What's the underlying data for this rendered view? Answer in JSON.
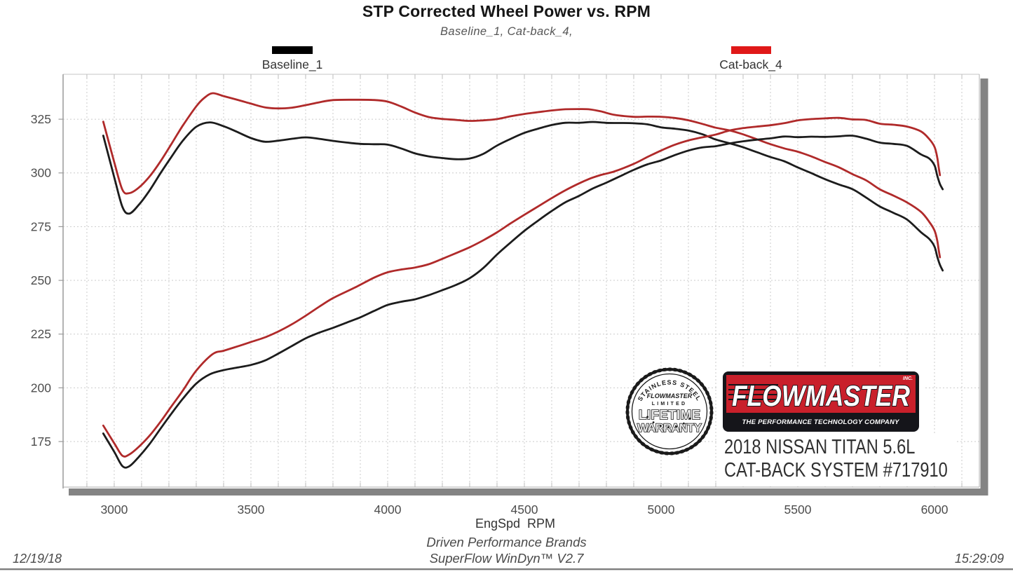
{
  "page": {
    "date": "12/19/18",
    "time": "15:29:09",
    "footer_line1": "Driven Performance Brands",
    "footer_line2": "SuperFlow WinDyn™ V2.7"
  },
  "branding": {
    "badge": {
      "arc_top": "STAINLESS STEEL",
      "brand": "FLOWMASTER",
      "limited": "LIMITED",
      "word1": "LIFETIME",
      "word2": "WARRANTY",
      "arc_bottom": "• • • • • • •"
    },
    "logo": {
      "brand": "FLOWMASTER",
      "inc": "INC.",
      "tagline": "THE PERFORMANCE TECHNOLOGY COMPANY"
    },
    "caption_line1": "2018 NISSAN TITAN 5.6L",
    "caption_line2": "CAT-BACK SYSTEM #717910"
  },
  "chart_data": {
    "type": "line",
    "title": "STP Corrected Wheel Power vs. RPM",
    "subtitle": "Baseline_1, Cat-back_4,",
    "xlabel": "EngSpd  RPM",
    "legend": [
      {
        "label": "Baseline_1",
        "color": "#000000"
      },
      {
        "label": "Cat-back_4",
        "color": "#e01818"
      }
    ],
    "x_ticks": [
      3000,
      3500,
      4000,
      4500,
      5000,
      5500,
      6000
    ],
    "y_ticks": [
      175,
      200,
      225,
      250,
      275,
      300,
      325
    ],
    "x_range": [
      2813,
      6164
    ],
    "y_range": [
      153.8,
      345.9
    ],
    "grid_x_step": 100,
    "grid_y_step": 25,
    "grid": true,
    "series": [
      {
        "name": "Baseline_1",
        "curve": "upper",
        "color": "#1c1c1c",
        "points": [
          [
            2960,
            317.5
          ],
          [
            3000,
            298
          ],
          [
            3030,
            284.5
          ],
          [
            3055,
            281
          ],
          [
            3090,
            285
          ],
          [
            3130,
            292
          ],
          [
            3170,
            300
          ],
          [
            3210,
            307.5
          ],
          [
            3250,
            315
          ],
          [
            3300,
            321.5
          ],
          [
            3350,
            323.5
          ],
          [
            3400,
            322
          ],
          [
            3450,
            319.5
          ],
          [
            3500,
            316.5
          ],
          [
            3550,
            314.5
          ],
          [
            3600,
            315
          ],
          [
            3650,
            316
          ],
          [
            3700,
            316.5
          ],
          [
            3750,
            315.5
          ],
          [
            3800,
            314.5
          ],
          [
            3850,
            314
          ],
          [
            3900,
            313.5
          ],
          [
            3950,
            313.2
          ],
          [
            4000,
            313
          ],
          [
            4050,
            311.5
          ],
          [
            4100,
            309.5
          ],
          [
            4150,
            308
          ],
          [
            4200,
            307
          ],
          [
            4250,
            306.5
          ],
          [
            4300,
            307
          ],
          [
            4350,
            309
          ],
          [
            4400,
            312.5
          ],
          [
            4450,
            315.5
          ],
          [
            4500,
            318.5
          ],
          [
            4550,
            320.5
          ],
          [
            4600,
            322
          ],
          [
            4650,
            323
          ],
          [
            4700,
            323.3
          ],
          [
            4750,
            324
          ],
          [
            4800,
            323.5
          ],
          [
            4850,
            323.3
          ],
          [
            4900,
            323.3
          ],
          [
            4950,
            323
          ],
          [
            5000,
            321.5
          ],
          [
            5050,
            320.5
          ],
          [
            5100,
            319.5
          ],
          [
            5150,
            318
          ],
          [
            5200,
            315.5
          ],
          [
            5250,
            313.5
          ],
          [
            5300,
            311.5
          ],
          [
            5350,
            309.5
          ],
          [
            5400,
            307.5
          ],
          [
            5450,
            305.5
          ],
          [
            5500,
            302.5
          ],
          [
            5550,
            300
          ],
          [
            5600,
            297.5
          ],
          [
            5650,
            295
          ],
          [
            5700,
            292.5
          ],
          [
            5750,
            288.5
          ],
          [
            5800,
            284.5
          ],
          [
            5850,
            281.5
          ],
          [
            5900,
            278
          ],
          [
            5950,
            272
          ],
          [
            5980,
            269.5
          ],
          [
            6000,
            265.5
          ],
          [
            6010,
            261
          ],
          [
            6020,
            257.5
          ],
          [
            6030,
            255
          ]
        ]
      },
      {
        "name": "Cat-back_4",
        "curve": "upper",
        "color": "#b02a2a",
        "points": [
          [
            2960,
            324
          ],
          [
            3000,
            305
          ],
          [
            3030,
            292.5
          ],
          [
            3055,
            290.5
          ],
          [
            3090,
            293
          ],
          [
            3130,
            298.5
          ],
          [
            3170,
            305.5
          ],
          [
            3210,
            313.5
          ],
          [
            3250,
            322
          ],
          [
            3300,
            331
          ],
          [
            3330,
            334.8
          ],
          [
            3360,
            336.8
          ],
          [
            3400,
            336
          ],
          [
            3450,
            334.5
          ],
          [
            3500,
            332.5
          ],
          [
            3550,
            330.5
          ],
          [
            3600,
            330
          ],
          [
            3650,
            330.5
          ],
          [
            3700,
            331.5
          ],
          [
            3750,
            332.5
          ],
          [
            3800,
            333.5
          ],
          [
            3880,
            334.5
          ],
          [
            3950,
            333.8
          ],
          [
            4000,
            333
          ],
          [
            4050,
            331
          ],
          [
            4100,
            328.5
          ],
          [
            4150,
            326.3
          ],
          [
            4200,
            325.2
          ],
          [
            4250,
            324.8
          ],
          [
            4300,
            324.5
          ],
          [
            4350,
            324.6
          ],
          [
            4400,
            324.8
          ],
          [
            4450,
            326
          ],
          [
            4500,
            327.3
          ],
          [
            4550,
            328.2
          ],
          [
            4600,
            328.8
          ],
          [
            4650,
            329.3
          ],
          [
            4700,
            329.7
          ],
          [
            4740,
            330
          ],
          [
            4780,
            328.8
          ],
          [
            4830,
            326.8
          ],
          [
            4900,
            326.3
          ],
          [
            4950,
            326.6
          ],
          [
            5000,
            326.4
          ],
          [
            5050,
            325.5
          ],
          [
            5100,
            324.3
          ],
          [
            5150,
            322.8
          ],
          [
            5200,
            321
          ],
          [
            5250,
            319.5
          ],
          [
            5300,
            317.5
          ],
          [
            5350,
            315.5
          ],
          [
            5400,
            313.5
          ],
          [
            5450,
            311.5
          ],
          [
            5500,
            309.8
          ],
          [
            5550,
            307.8
          ],
          [
            5600,
            305.5
          ],
          [
            5650,
            303
          ],
          [
            5700,
            299.5
          ],
          [
            5750,
            296.5
          ],
          [
            5800,
            292.5
          ],
          [
            5850,
            289.5
          ],
          [
            5900,
            286
          ],
          [
            5950,
            281.5
          ],
          [
            5980,
            277.5
          ],
          [
            6000,
            273
          ],
          [
            6010,
            268.5
          ],
          [
            6015,
            264.5
          ],
          [
            6020,
            261
          ]
        ]
      },
      {
        "name": "Baseline_1",
        "curve": "lower",
        "color": "#1c1c1c",
        "points": [
          [
            2960,
            178.9
          ],
          [
            3000,
            170.2
          ],
          [
            3030,
            163.9
          ],
          [
            3055,
            163.4
          ],
          [
            3090,
            167.7
          ],
          [
            3130,
            174.0
          ],
          [
            3170,
            181.1
          ],
          [
            3210,
            188.0
          ],
          [
            3250,
            194.9
          ],
          [
            3300,
            202.0
          ],
          [
            3350,
            206.3
          ],
          [
            3400,
            208.5
          ],
          [
            3450,
            209.9
          ],
          [
            3500,
            210.9
          ],
          [
            3550,
            212.6
          ],
          [
            3600,
            215.9
          ],
          [
            3650,
            219.6
          ],
          [
            3700,
            223.0
          ],
          [
            3750,
            225.3
          ],
          [
            3800,
            227.5
          ],
          [
            3850,
            230.2
          ],
          [
            3900,
            232.8
          ],
          [
            3950,
            235.6
          ],
          [
            4000,
            238.4
          ],
          [
            4050,
            240.2
          ],
          [
            4100,
            241.6
          ],
          [
            4150,
            243.4
          ],
          [
            4200,
            245.5
          ],
          [
            4250,
            248.0
          ],
          [
            4300,
            251.3
          ],
          [
            4350,
            255.9
          ],
          [
            4400,
            261.8
          ],
          [
            4450,
            267.3
          ],
          [
            4500,
            272.9
          ],
          [
            4550,
            277.7
          ],
          [
            4600,
            282.0
          ],
          [
            4650,
            286.0
          ],
          [
            4700,
            289.3
          ],
          [
            4750,
            293.0
          ],
          [
            4800,
            295.7
          ],
          [
            4850,
            298.5
          ],
          [
            4900,
            301.6
          ],
          [
            4950,
            304.4
          ],
          [
            5000,
            306.1
          ],
          [
            5050,
            308.2
          ],
          [
            5100,
            310.2
          ],
          [
            5150,
            311.8
          ],
          [
            5200,
            312.4
          ],
          [
            5250,
            313.4
          ],
          [
            5300,
            314.3
          ],
          [
            5350,
            315.3
          ],
          [
            5400,
            316.2
          ],
          [
            5450,
            317.0
          ],
          [
            5500,
            316.6
          ],
          [
            5550,
            317.0
          ],
          [
            5600,
            317.2
          ],
          [
            5650,
            317.4
          ],
          [
            5700,
            317.4
          ],
          [
            5750,
            315.9
          ],
          [
            5800,
            314.2
          ],
          [
            5850,
            313.6
          ],
          [
            5900,
            312.3
          ],
          [
            5950,
            308.2
          ],
          [
            5980,
            306.9
          ],
          [
            6000,
            303.3
          ],
          [
            6010,
            298.7
          ],
          [
            6020,
            295.1
          ],
          [
            6030,
            292.8
          ]
        ]
      },
      {
        "name": "Cat-back_4",
        "curve": "lower",
        "color": "#b02a2a",
        "points": [
          [
            2960,
            182.6
          ],
          [
            3000,
            174.2
          ],
          [
            3030,
            168.7
          ],
          [
            3055,
            168.9
          ],
          [
            3090,
            172.4
          ],
          [
            3130,
            177.9
          ],
          [
            3170,
            184.3
          ],
          [
            3210,
            191.4
          ],
          [
            3250,
            198.7
          ],
          [
            3300,
            208.0
          ],
          [
            3360,
            215.4
          ],
          [
            3400,
            217.5
          ],
          [
            3450,
            219.7
          ],
          [
            3500,
            221.6
          ],
          [
            3550,
            223.4
          ],
          [
            3600,
            226.2
          ],
          [
            3650,
            229.7
          ],
          [
            3700,
            233.5
          ],
          [
            3750,
            237.4
          ],
          [
            3800,
            241.3
          ],
          [
            3880,
            247.1
          ],
          [
            3950,
            251.1
          ],
          [
            4000,
            253.6
          ],
          [
            4050,
            255.2
          ],
          [
            4100,
            256.4
          ],
          [
            4150,
            257.8
          ],
          [
            4200,
            260.1
          ],
          [
            4250,
            262.8
          ],
          [
            4300,
            265.7
          ],
          [
            4350,
            268.8
          ],
          [
            4400,
            272.1
          ],
          [
            4450,
            276.2
          ],
          [
            4500,
            280.4
          ],
          [
            4550,
            284.3
          ],
          [
            4600,
            288.0
          ],
          [
            4650,
            291.6
          ],
          [
            4700,
            295.1
          ],
          [
            4740,
            297.8
          ],
          [
            4780,
            299.2
          ],
          [
            4830,
            300.5
          ],
          [
            4900,
            304.4
          ],
          [
            4950,
            307.8
          ],
          [
            5000,
            310.7
          ],
          [
            5050,
            313.0
          ],
          [
            5100,
            314.9
          ],
          [
            5150,
            316.5
          ],
          [
            5200,
            317.8
          ],
          [
            5250,
            319.4
          ],
          [
            5300,
            320.4
          ],
          [
            5350,
            321.4
          ],
          [
            5400,
            322.3
          ],
          [
            5450,
            323.2
          ],
          [
            5500,
            324.4
          ],
          [
            5550,
            325.2
          ],
          [
            5600,
            325.8
          ],
          [
            5650,
            326.0
          ],
          [
            5700,
            325.0
          ],
          [
            5750,
            324.6
          ],
          [
            5800,
            323.0
          ],
          [
            5850,
            322.5
          ],
          [
            5900,
            321.3
          ],
          [
            5950,
            318.9
          ],
          [
            5980,
            316.0
          ],
          [
            6000,
            311.9
          ],
          [
            6010,
            307.2
          ],
          [
            6015,
            302.9
          ],
          [
            6020,
            299.2
          ]
        ]
      }
    ]
  }
}
